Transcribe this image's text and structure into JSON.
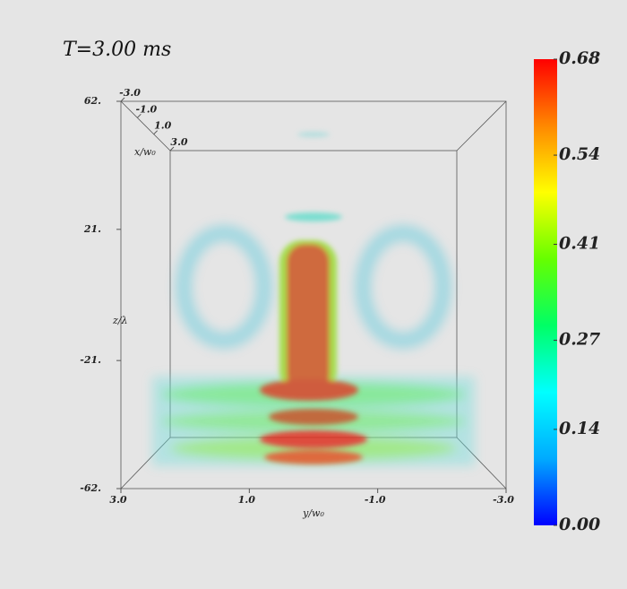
{
  "chart_data": {
    "type": "volume",
    "title": "T=3.00 ms",
    "x_label": "x/w₀",
    "y_label": "y/w₀",
    "z_label": "z/λ",
    "xlim": [
      -3,
      3
    ],
    "xticks": [
      {
        "value": -3,
        "label": "-3.0"
      },
      {
        "value": -1,
        "label": "-1.0"
      },
      {
        "value": 1,
        "label": "1.0"
      },
      {
        "value": 3,
        "label": "3.0"
      }
    ],
    "ylim": [
      3,
      -3
    ],
    "yticks": [
      {
        "value": 3,
        "label": "3.0"
      },
      {
        "value": 1,
        "label": "1.0"
      },
      {
        "value": -1,
        "label": "-1.0"
      },
      {
        "value": -3,
        "label": "-3.0"
      }
    ],
    "zlim": [
      -62,
      62
    ],
    "zticks": [
      {
        "value": 62,
        "label": "62."
      },
      {
        "value": 21,
        "label": "21."
      },
      {
        "value": -21,
        "label": "-21."
      },
      {
        "value": -62,
        "label": "-62."
      }
    ],
    "clim": [
      0,
      0.68
    ],
    "cticks": [
      {
        "value": 0,
        "label": "0.00"
      },
      0.14,
      0.27,
      0.41,
      0.54,
      0.68
    ],
    "colormap": [
      "#0000ff",
      "#00aaff",
      "#00ffff",
      "#00ff66",
      "#66ff00",
      "#ffff00",
      "#ff8800",
      "#ff0000"
    ]
  }
}
